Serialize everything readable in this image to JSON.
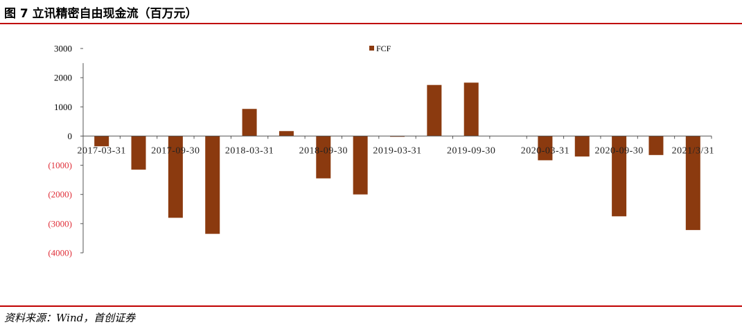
{
  "header": {
    "title": "图 7 立讯精密自由现金流（百万元）"
  },
  "footer": {
    "source": "资料来源：Wind，首创证券"
  },
  "colors": {
    "bar": "#8B3A0F",
    "rule": "#c00000",
    "negative_tick": "#e0303a",
    "axis": "#555555"
  },
  "chart_data": {
    "type": "bar",
    "title": "",
    "xlabel": "",
    "ylabel": "",
    "ylim": [
      -4000,
      3000
    ],
    "grid": false,
    "legend_position": "top-center",
    "y_ticks": [
      3000,
      2000,
      1000,
      0,
      -1000,
      -2000,
      -3000,
      -4000
    ],
    "y_tick_labels": [
      "3000",
      "2000",
      "1000",
      "0",
      "(1000)",
      "(2000)",
      "(3000)",
      "(4000)"
    ],
    "categories": [
      "2017-03-31",
      "",
      "2017-09-30",
      "",
      "2018-03-31",
      "",
      "2018-09-30",
      "",
      "2019-03-31",
      "",
      "2019-09-30",
      "",
      "2020-03-31",
      "",
      "2020-09-30",
      "",
      "2021/3/31"
    ],
    "series": [
      {
        "name": "FCF",
        "values": [
          -350,
          -1150,
          -2800,
          -3350,
          930,
          170,
          -1450,
          -2000,
          -20,
          1750,
          1830,
          0,
          -830,
          -700,
          -2750,
          -650,
          -3220
        ]
      }
    ]
  }
}
